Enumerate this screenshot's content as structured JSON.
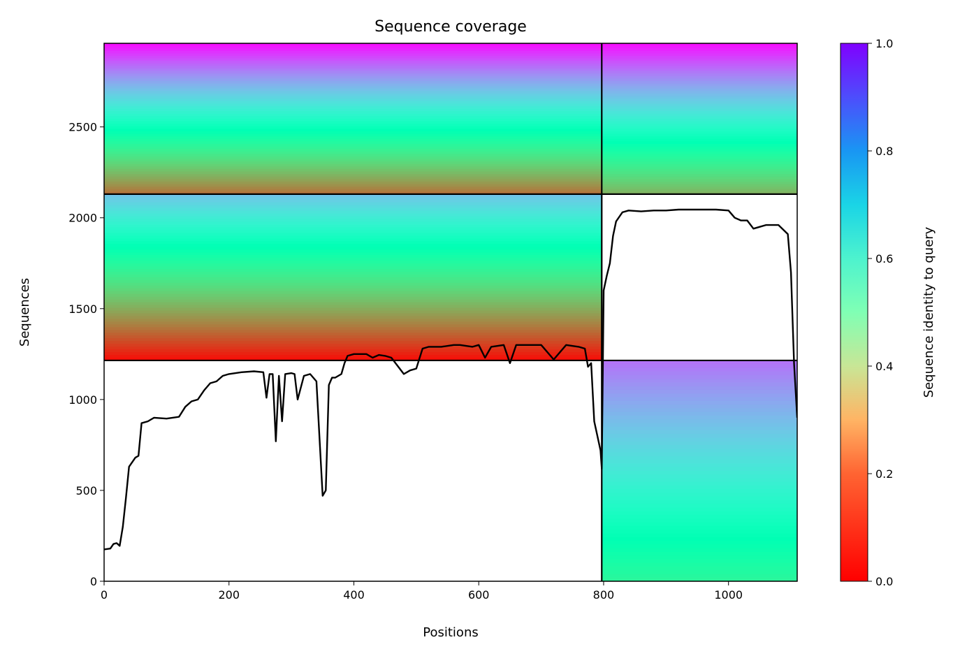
{
  "chart_data": {
    "type": "heatmap",
    "title": "Sequence coverage",
    "xlabel": "Positions",
    "ylabel": "Sequences",
    "xlim": [
      0,
      1110
    ],
    "ylim": [
      0,
      2960
    ],
    "xticks": [
      "0",
      "200",
      "400",
      "600",
      "800",
      "1000"
    ],
    "yticks": [
      "0",
      "500",
      "1000",
      "1500",
      "2000",
      "2500"
    ],
    "colorbar": {
      "label": "Sequence identity to query",
      "colormap": "rainbow_r",
      "range": [
        0,
        1
      ],
      "ticks": [
        "0.0",
        "0.2",
        "0.4",
        "0.6",
        "0.8",
        "1.0"
      ]
    },
    "grid": false,
    "dividers": {
      "vertical_x": 797,
      "horizontal_y": [
        2130,
        1215
      ]
    },
    "coverage_line": {
      "x": [
        0,
        10,
        15,
        20,
        25,
        30,
        35,
        40,
        50,
        55,
        60,
        70,
        80,
        100,
        120,
        130,
        140,
        150,
        160,
        170,
        180,
        190,
        200,
        220,
        240,
        255,
        260,
        265,
        270,
        275,
        280,
        285,
        290,
        300,
        305,
        310,
        320,
        330,
        340,
        350,
        355,
        360,
        365,
        370,
        380,
        385,
        390,
        400,
        420,
        430,
        440,
        450,
        460,
        480,
        490,
        500,
        510,
        520,
        540,
        560,
        570,
        590,
        600,
        610,
        620,
        640,
        650,
        660,
        680,
        700,
        720,
        740,
        760,
        770,
        775,
        780,
        785,
        790,
        795,
        797,
        800,
        805,
        810,
        815,
        820,
        830,
        840,
        860,
        880,
        900,
        920,
        940,
        960,
        980,
        1000,
        1010,
        1020,
        1030,
        1040,
        1050,
        1060,
        1080,
        1095,
        1100,
        1105,
        1110
      ],
      "y": [
        175,
        180,
        205,
        210,
        195,
        300,
        460,
        630,
        680,
        690,
        870,
        880,
        900,
        895,
        905,
        960,
        990,
        1000,
        1050,
        1090,
        1100,
        1130,
        1140,
        1150,
        1155,
        1150,
        1010,
        1140,
        1140,
        770,
        1130,
        880,
        1140,
        1145,
        1140,
        1000,
        1130,
        1140,
        1100,
        470,
        500,
        1080,
        1120,
        1120,
        1140,
        1200,
        1240,
        1250,
        1250,
        1230,
        1245,
        1240,
        1230,
        1140,
        1160,
        1170,
        1280,
        1290,
        1290,
        1300,
        1300,
        1290,
        1300,
        1230,
        1290,
        1300,
        1200,
        1300,
        1300,
        1300,
        1220,
        1300,
        1290,
        1280,
        1180,
        1200,
        880,
        800,
        720,
        620,
        1600,
        1680,
        1750,
        1900,
        1980,
        2030,
        2040,
        2035,
        2040,
        2040,
        2045,
        2045,
        2045,
        2045,
        2040,
        2000,
        1985,
        1985,
        1940,
        1950,
        1960,
        1960,
        1910,
        1700,
        1200,
        900
      ]
    },
    "blocks": [
      {
        "x_range": [
          0,
          797
        ],
        "y_range": [
          2130,
          2960
        ],
        "identity_top": 0.98,
        "identity_bottom": 0.15
      },
      {
        "x_range": [
          797,
          1110
        ],
        "y_range": [
          2130,
          2960
        ],
        "identity_top": 0.98,
        "identity_bottom": 0.25
      },
      {
        "x_range": [
          0,
          797
        ],
        "y_range": [
          1215,
          2130
        ],
        "identity_top": 0.72,
        "identity_bottom": 0.02
      },
      {
        "x_range": [
          797,
          1110
        ],
        "y_range": [
          0,
          1215
        ],
        "identity_top": 0.85,
        "identity_bottom": 0.42
      }
    ]
  }
}
